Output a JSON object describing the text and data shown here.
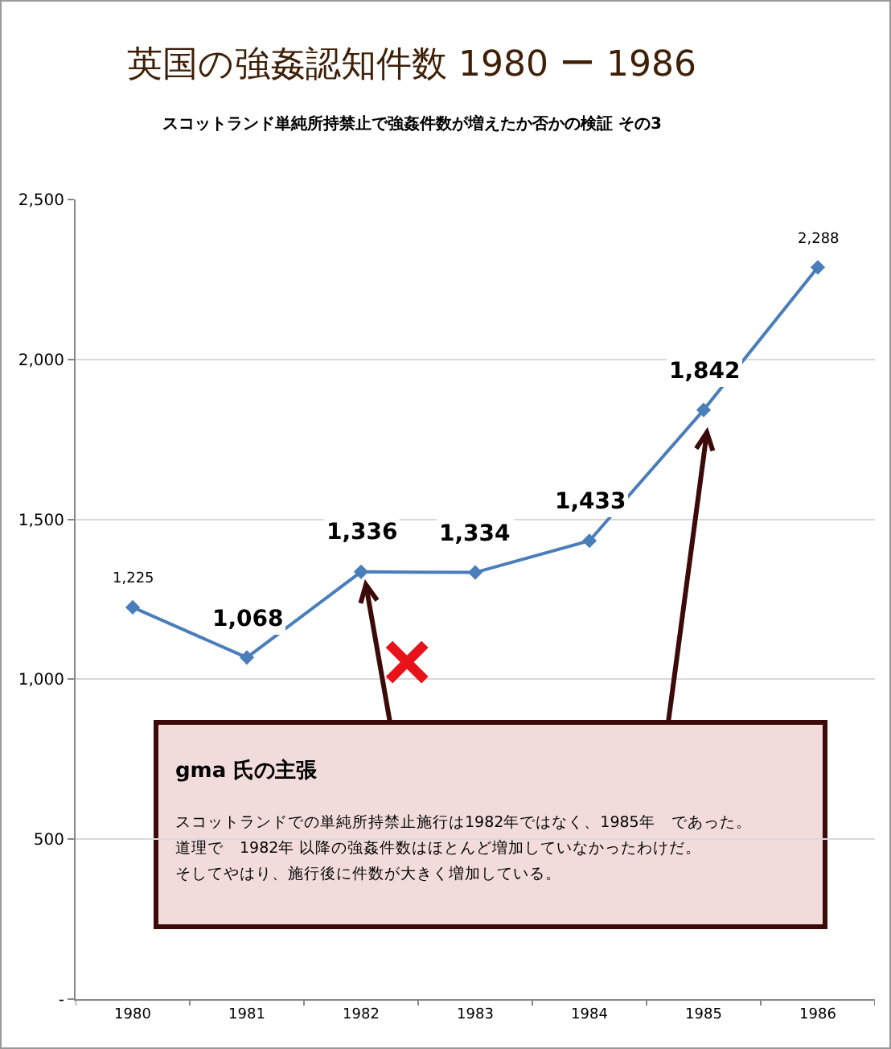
{
  "chart_data": {
    "type": "line",
    "title": "英国の強姦認知件数 1980 ー 1986",
    "subtitle": "スコットランド単純所持禁止で強姦件数が増えたか否かの検証 その3",
    "categories": [
      "1980",
      "1981",
      "1982",
      "1983",
      "1984",
      "1985",
      "1986"
    ],
    "series": [
      {
        "color": "#4a7ebb",
        "values": [
          1225,
          1068,
          1336,
          1334,
          1433,
          1842,
          2288
        ]
      }
    ],
    "ylim": [
      0,
      2500
    ],
    "yticks": [
      {
        "value": 0,
        "label": "-"
      },
      500,
      {
        "value": 1000,
        "label": "1,000"
      },
      {
        "value": 1500,
        "label": "1,500"
      },
      {
        "value": 2000,
        "label": "2,000"
      },
      {
        "value": 2500,
        "label": "2,500"
      }
    ],
    "value_labels": [
      "1,225",
      "1,068",
      "1,336",
      "1,334",
      "1,433",
      "1,842",
      "2,288"
    ],
    "grid": "y",
    "marker": "diamond",
    "line_style": "solid",
    "annotations": [
      "gma 氏の主張",
      "スコットランドでの単純所持禁止施行は1982年ではなく、1985年　であった。",
      "道理で　1982年 以降の強姦件数はほとんど増加していなかったわけだ。",
      "そしてやはり、施行後に件数が大きく増加している。"
    ]
  }
}
